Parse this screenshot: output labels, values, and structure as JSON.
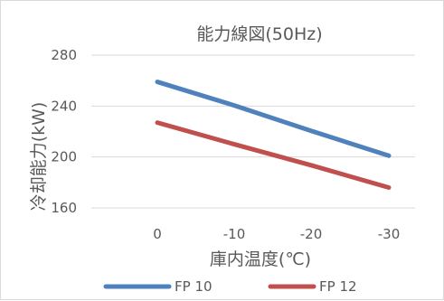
{
  "chart_data": {
    "type": "line",
    "title": "能力線図(50Hz)",
    "xlabel": "庫内温度(℃)",
    "ylabel": "冷却能力(kW)",
    "categories": [
      "0",
      "-10",
      "-20",
      "-30"
    ],
    "x": [
      0,
      -10,
      -20,
      -30
    ],
    "ylim": [
      160,
      280
    ],
    "yticks": [
      "160",
      "200",
      "240",
      "280"
    ],
    "yticks_values": [
      160,
      200,
      240,
      280
    ],
    "grid": "horizontal",
    "legend_position": "bottom",
    "series": [
      {
        "name": "FP 10",
        "color": "#4f81bd",
        "values": [
          259,
          240.5,
          220.5,
          201
        ]
      },
      {
        "name": "FP 12",
        "color": "#c0504d",
        "values": [
          227,
          210,
          193.5,
          176
        ]
      }
    ]
  }
}
